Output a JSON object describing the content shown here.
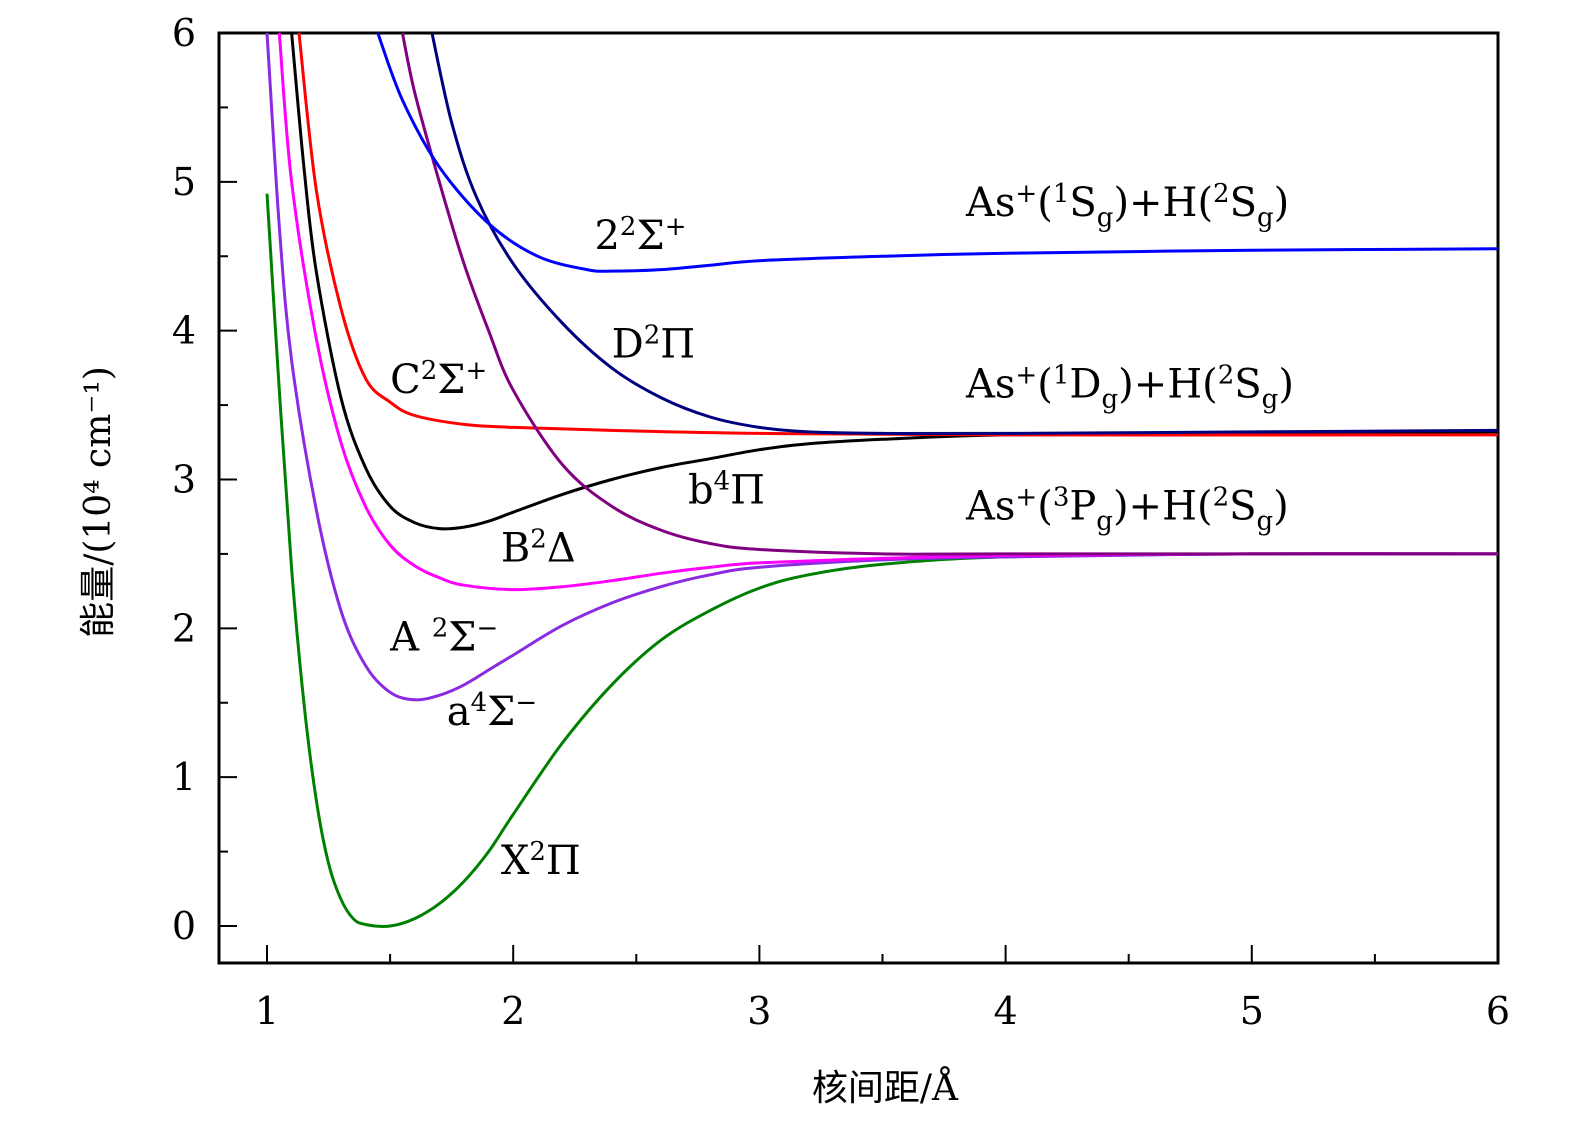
{
  "chart_data": {
    "type": "line",
    "title": "",
    "xlabel": "核间距/Å",
    "ylabel": "能量/(10⁴ cm⁻¹)",
    "xlim": [
      0.8,
      6
    ],
    "ylim": [
      -0.25,
      6
    ],
    "xticks": [
      "1",
      "2",
      "3",
      "4",
      "5",
      "6"
    ],
    "yticks": [
      "0",
      "1",
      "2",
      "3",
      "4",
      "5",
      "6"
    ],
    "series": [
      {
        "name": "X2Pi",
        "color": "#008000",
        "points": [
          [
            1.0,
            4.92
          ],
          [
            1.05,
            3.6
          ],
          [
            1.1,
            2.4
          ],
          [
            1.15,
            1.5
          ],
          [
            1.2,
            0.85
          ],
          [
            1.25,
            0.42
          ],
          [
            1.3,
            0.18
          ],
          [
            1.35,
            0.05
          ],
          [
            1.4,
            0.01
          ],
          [
            1.5,
            0.0
          ],
          [
            1.6,
            0.05
          ],
          [
            1.7,
            0.15
          ],
          [
            1.8,
            0.3
          ],
          [
            1.9,
            0.5
          ],
          [
            2.0,
            0.75
          ],
          [
            2.2,
            1.23
          ],
          [
            2.4,
            1.62
          ],
          [
            2.6,
            1.92
          ],
          [
            2.8,
            2.12
          ],
          [
            3.0,
            2.27
          ],
          [
            3.2,
            2.36
          ],
          [
            3.5,
            2.43
          ],
          [
            4.0,
            2.48
          ],
          [
            5.0,
            2.5
          ],
          [
            6.0,
            2.5
          ]
        ]
      },
      {
        "name": "a4Sigma-",
        "color": "#8a2be2",
        "points": [
          [
            1.0,
            6.0
          ],
          [
            1.05,
            4.7
          ],
          [
            1.1,
            3.8
          ],
          [
            1.2,
            2.8
          ],
          [
            1.3,
            2.12
          ],
          [
            1.4,
            1.75
          ],
          [
            1.5,
            1.57
          ],
          [
            1.6,
            1.52
          ],
          [
            1.7,
            1.55
          ],
          [
            1.8,
            1.62
          ],
          [
            1.9,
            1.72
          ],
          [
            2.0,
            1.82
          ],
          [
            2.2,
            2.02
          ],
          [
            2.4,
            2.17
          ],
          [
            2.6,
            2.28
          ],
          [
            2.8,
            2.36
          ],
          [
            3.0,
            2.41
          ],
          [
            3.5,
            2.46
          ],
          [
            4.0,
            2.48
          ],
          [
            5.0,
            2.5
          ],
          [
            6.0,
            2.5
          ]
        ]
      },
      {
        "name": "A2Sigma-",
        "color": "#ff00ff",
        "points": [
          [
            1.05,
            6.0
          ],
          [
            1.1,
            5.0
          ],
          [
            1.2,
            3.95
          ],
          [
            1.3,
            3.25
          ],
          [
            1.4,
            2.82
          ],
          [
            1.5,
            2.56
          ],
          [
            1.6,
            2.42
          ],
          [
            1.7,
            2.34
          ],
          [
            1.8,
            2.29
          ],
          [
            2.0,
            2.26
          ],
          [
            2.2,
            2.28
          ],
          [
            2.4,
            2.32
          ],
          [
            2.6,
            2.37
          ],
          [
            2.8,
            2.41
          ],
          [
            3.0,
            2.44
          ],
          [
            3.5,
            2.47
          ],
          [
            4.0,
            2.49
          ],
          [
            5.0,
            2.5
          ],
          [
            6.0,
            2.5
          ]
        ]
      },
      {
        "name": "B2Delta",
        "color": "#000000",
        "points": [
          [
            1.1,
            6.0
          ],
          [
            1.15,
            5.1
          ],
          [
            1.2,
            4.4
          ],
          [
            1.3,
            3.55
          ],
          [
            1.4,
            3.08
          ],
          [
            1.5,
            2.82
          ],
          [
            1.6,
            2.71
          ],
          [
            1.7,
            2.67
          ],
          [
            1.8,
            2.68
          ],
          [
            1.9,
            2.72
          ],
          [
            2.0,
            2.78
          ],
          [
            2.2,
            2.9
          ],
          [
            2.4,
            3.0
          ],
          [
            2.6,
            3.08
          ],
          [
            2.8,
            3.14
          ],
          [
            3.0,
            3.2
          ],
          [
            3.2,
            3.24
          ],
          [
            3.5,
            3.27
          ],
          [
            4.0,
            3.3
          ],
          [
            5.0,
            3.31
          ],
          [
            6.0,
            3.32
          ]
        ]
      },
      {
        "name": "C2Sigma+",
        "color": "#ff0000",
        "points": [
          [
            1.13,
            6.0
          ],
          [
            1.2,
            4.95
          ],
          [
            1.3,
            4.15
          ],
          [
            1.4,
            3.68
          ],
          [
            1.5,
            3.52
          ],
          [
            1.6,
            3.43
          ],
          [
            1.8,
            3.37
          ],
          [
            2.0,
            3.35
          ],
          [
            2.4,
            3.33
          ],
          [
            3.0,
            3.31
          ],
          [
            4.0,
            3.3
          ],
          [
            6.0,
            3.3
          ]
        ]
      },
      {
        "name": "b4Pi",
        "color": "#800080",
        "points": [
          [
            1.55,
            6.0
          ],
          [
            1.6,
            5.6
          ],
          [
            1.7,
            5.0
          ],
          [
            1.8,
            4.45
          ],
          [
            1.9,
            4.0
          ],
          [
            2.0,
            3.6
          ],
          [
            2.2,
            3.1
          ],
          [
            2.4,
            2.82
          ],
          [
            2.6,
            2.66
          ],
          [
            2.8,
            2.57
          ],
          [
            3.0,
            2.53
          ],
          [
            3.5,
            2.5
          ],
          [
            4.0,
            2.5
          ],
          [
            6.0,
            2.5
          ]
        ]
      },
      {
        "name": "D2Pi",
        "color": "#000080",
        "points": [
          [
            1.67,
            6.0
          ],
          [
            1.75,
            5.4
          ],
          [
            1.85,
            4.9
          ],
          [
            2.0,
            4.45
          ],
          [
            2.2,
            4.05
          ],
          [
            2.4,
            3.75
          ],
          [
            2.6,
            3.55
          ],
          [
            2.8,
            3.42
          ],
          [
            3.0,
            3.35
          ],
          [
            3.2,
            3.32
          ],
          [
            3.5,
            3.31
          ],
          [
            4.0,
            3.31
          ],
          [
            5.0,
            3.32
          ],
          [
            6.0,
            3.33
          ]
        ]
      },
      {
        "name": "2^2Sigma+",
        "color": "#0000ff",
        "points": [
          [
            1.45,
            6.0
          ],
          [
            1.55,
            5.55
          ],
          [
            1.7,
            5.1
          ],
          [
            1.9,
            4.72
          ],
          [
            2.1,
            4.5
          ],
          [
            2.3,
            4.41
          ],
          [
            2.4,
            4.4
          ],
          [
            2.6,
            4.41
          ],
          [
            2.8,
            4.44
          ],
          [
            3.0,
            4.47
          ],
          [
            3.5,
            4.5
          ],
          [
            4.0,
            4.52
          ],
          [
            5.0,
            4.54
          ],
          [
            6.0,
            4.55
          ]
        ]
      }
    ],
    "state_labels": [
      {
        "text": "X",
        "sup": "2",
        "sym": "Π",
        "x": 1.95,
        "y": 0.35
      },
      {
        "text": "a",
        "sup": "4",
        "sym": "Σ",
        "symsup": "−",
        "x": 1.73,
        "y": 1.35
      },
      {
        "text": "A ",
        "sup": "2",
        "sym": "Σ",
        "symsup": "−",
        "x": 1.5,
        "y": 1.85
      },
      {
        "text": "B",
        "sup": "2",
        "sym": "Δ",
        "x": 1.95,
        "y": 2.45
      },
      {
        "text": "b",
        "sup": "4",
        "sym": "Π",
        "x": 2.71,
        "y": 2.84
      },
      {
        "text": "C",
        "sup": "2",
        "sym": "Σ",
        "symsup": "+",
        "x": 1.5,
        "y": 3.58
      },
      {
        "text": "D",
        "sup": "2",
        "sym": "Π",
        "x": 2.4,
        "y": 3.82
      },
      {
        "text": "2",
        "sup": "2",
        "sym": "Σ",
        "symsup": "+",
        "x": 2.33,
        "y": 4.55
      }
    ],
    "asymptote_labels": [
      {
        "atom_term": "1",
        "atom_letter": "S",
        "y": 4.77
      },
      {
        "atom_term": "1",
        "atom_letter": "D",
        "y": 3.55
      },
      {
        "atom_term": "3",
        "atom_letter": "P",
        "y": 2.73
      }
    ],
    "asymptote_parts": {
      "prefix": "As",
      "plus": "+",
      "sub": "g",
      "join": ")+H(",
      "h_term": "2",
      "h_letter": "S"
    }
  }
}
